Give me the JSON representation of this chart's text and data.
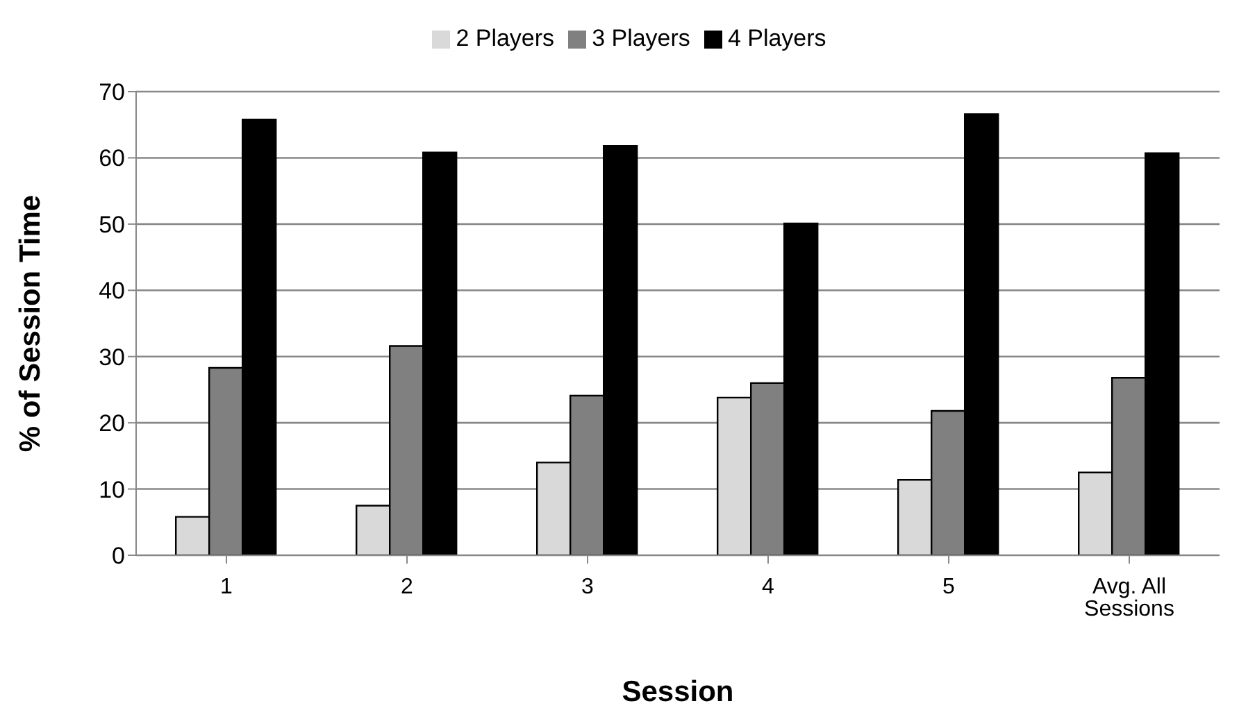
{
  "chart_data": {
    "type": "bar",
    "xlabel": "Session",
    "ylabel": "% of Session Time",
    "categories": [
      "1",
      "2",
      "3",
      "4",
      "5",
      "Avg. All Sessions"
    ],
    "series": [
      {
        "name": "2 Players",
        "color": "#d9d9d9",
        "values": [
          5.8,
          7.5,
          14.0,
          23.8,
          11.4,
          12.5
        ]
      },
      {
        "name": "3 Players",
        "color": "#808080",
        "values": [
          28.3,
          31.6,
          24.1,
          26.0,
          21.8,
          26.8
        ]
      },
      {
        "name": "4 Players",
        "color": "#000000",
        "values": [
          65.8,
          60.8,
          61.8,
          50.1,
          66.6,
          60.7
        ]
      }
    ],
    "ylim": [
      0,
      70
    ],
    "yticks": [
      0,
      10,
      20,
      30,
      40,
      50,
      60,
      70
    ],
    "grid": "y",
    "legend": "top"
  }
}
